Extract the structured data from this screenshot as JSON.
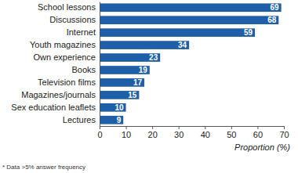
{
  "chart_data": {
    "type": "bar",
    "orientation": "horizontal",
    "categories": [
      "School lessons",
      "Discussions",
      "Internet",
      "Youth magazines",
      "Own experience",
      "Books",
      "Television films",
      "Magazines/journals",
      "Sex education leaflets",
      "Lectures"
    ],
    "values": [
      69,
      68,
      59,
      34,
      23,
      19,
      17,
      15,
      10,
      9
    ],
    "color": "#1f5fa8",
    "x_label": "Proportion (%)",
    "annotations": [
      "* Data >5% answer frequency"
    ],
    "xlim": [
      0,
      70
    ],
    "xticks": [
      0,
      10,
      20,
      30,
      40,
      50,
      60,
      70
    ],
    "grid": false,
    "data_labels": true
  }
}
